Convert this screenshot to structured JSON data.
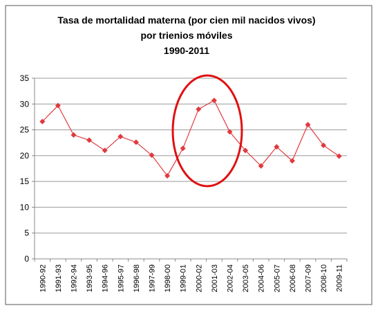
{
  "chart_data": {
    "type": "line",
    "title": "Tasa de mortalidad materna (por cien mil nacidos vivos)",
    "subtitle": [
      "por trienios móviles",
      "1990-2011"
    ],
    "categories": [
      "1990-92",
      "1991-93",
      "1992-94",
      "1993-95",
      "1994-96",
      "1995-97",
      "1996-98",
      "1997-99",
      "1998-00",
      "1999-01",
      "2000-02",
      "2001-03",
      "2002-04",
      "2003-05",
      "2004-06",
      "2005-07",
      "2006-08",
      "2007-09",
      "2008-10",
      "2009-11"
    ],
    "series": [
      {
        "color": "#e0393e",
        "values": [
          26.6,
          29.7,
          24,
          23,
          21,
          23.7,
          22.6,
          20.1,
          16.1,
          21.4,
          29,
          30.7,
          24.6,
          21,
          18,
          21.7,
          19,
          26,
          22,
          19.9
        ]
      }
    ],
    "ylim": [
      0,
      35
    ],
    "yticks": [
      0,
      5,
      10,
      15,
      20,
      25,
      30,
      35
    ],
    "grid": true
  }
}
